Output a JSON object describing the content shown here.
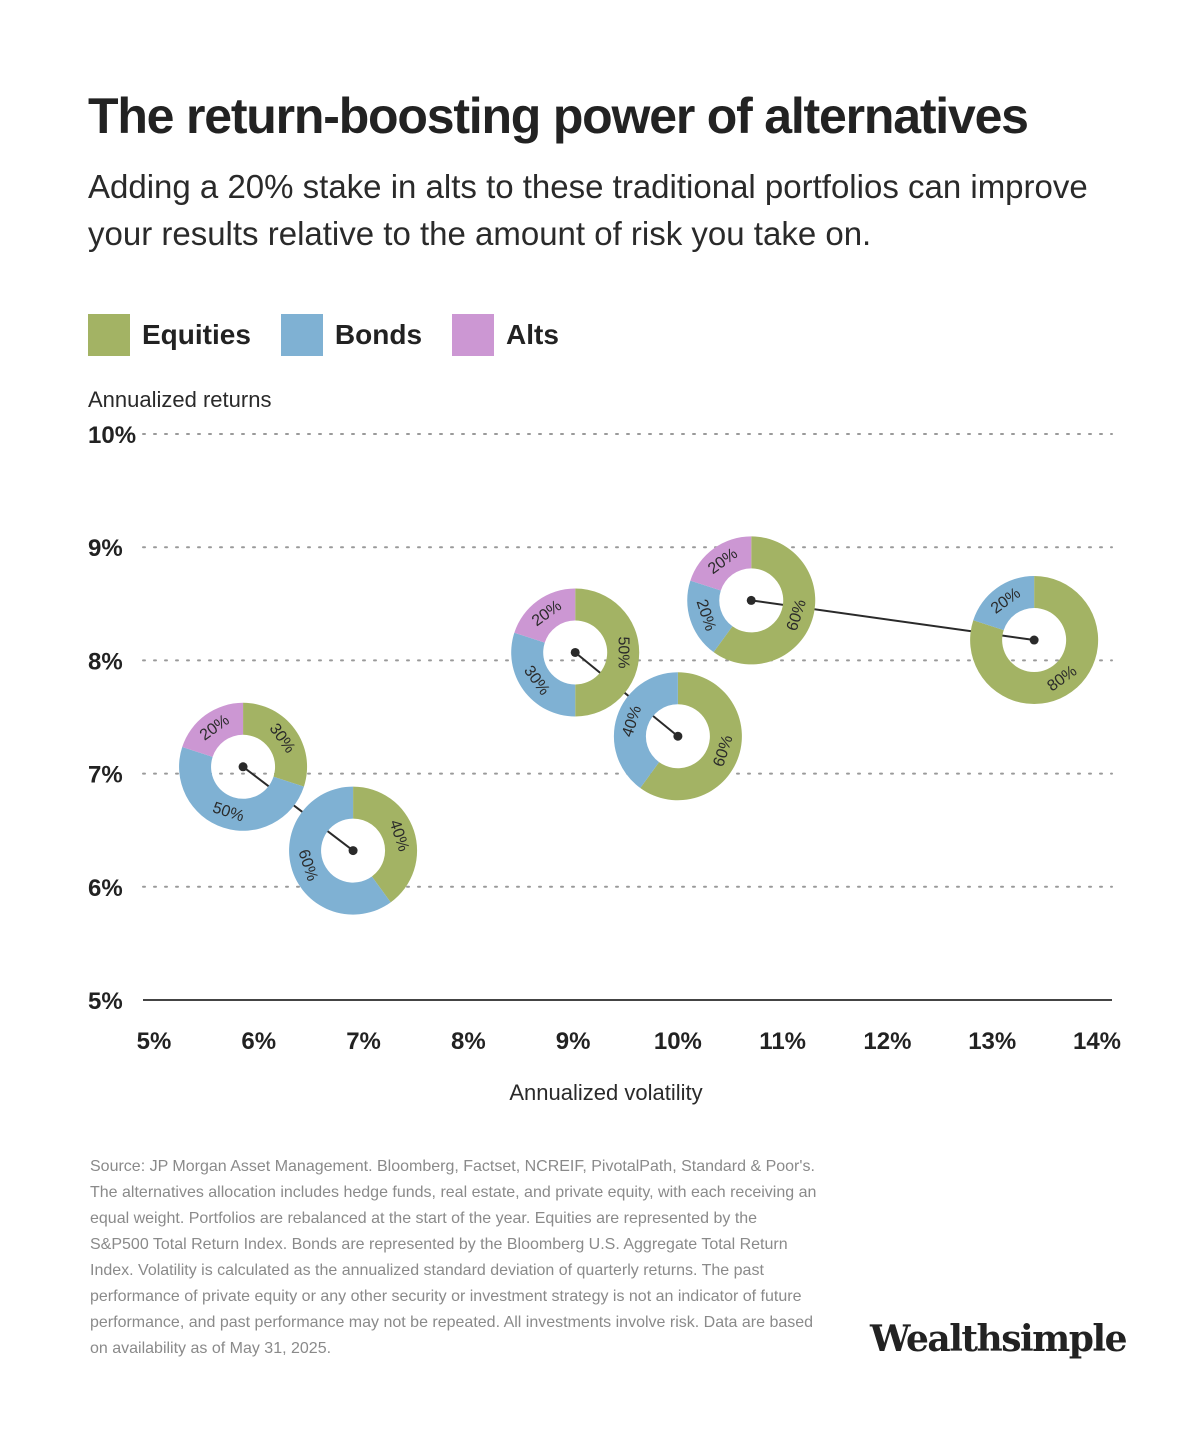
{
  "header": {
    "title": "The return-boosting power of alternatives",
    "subtitle": "Adding a 20% stake in alts to these traditional portfolios can improve your results relative to the amount of risk you take on."
  },
  "legend": [
    {
      "label": "Equities",
      "color": "#a3b364"
    },
    {
      "label": "Bonds",
      "color": "#7fb1d3"
    },
    {
      "label": "Alts",
      "color": "#cc97d3"
    }
  ],
  "chart_data": {
    "type": "scatter",
    "title": "The return-boosting power of alternatives",
    "xlabel": "Annualized volatility",
    "ylabel": "Annualized returns",
    "xlim": [
      5,
      14
    ],
    "ylim": [
      5,
      10
    ],
    "x_ticks": [
      "5%",
      "6%",
      "7%",
      "8%",
      "9%",
      "10%",
      "11%",
      "12%",
      "13%",
      "14%"
    ],
    "y_ticks": [
      "5%",
      "6%",
      "7%",
      "8%",
      "9%",
      "10%"
    ],
    "grid": "horizontal dotted",
    "legend_position": "top-left",
    "colors": {
      "Equities": "#a3b364",
      "Bonds": "#7fb1d3",
      "Alts": "#cc97d3"
    },
    "portfolios": [
      {
        "volatility": 5.85,
        "return": 7.06,
        "allocation": {
          "Equities": 30,
          "Bonds": 50,
          "Alts": 20
        }
      },
      {
        "volatility": 6.9,
        "return": 6.32,
        "allocation": {
          "Equities": 40,
          "Bonds": 60,
          "Alts": 0
        }
      },
      {
        "volatility": 9.02,
        "return": 8.07,
        "allocation": {
          "Equities": 50,
          "Bonds": 30,
          "Alts": 20
        }
      },
      {
        "volatility": 10.0,
        "return": 7.33,
        "allocation": {
          "Equities": 60,
          "Bonds": 40,
          "Alts": 0
        }
      },
      {
        "volatility": 10.7,
        "return": 8.53,
        "allocation": {
          "Equities": 60,
          "Bonds": 20,
          "Alts": 20
        }
      },
      {
        "volatility": 13.4,
        "return": 8.18,
        "allocation": {
          "Equities": 80,
          "Bonds": 20,
          "Alts": 0
        }
      }
    ],
    "connections": [
      [
        0,
        1
      ],
      [
        2,
        3
      ],
      [
        4,
        5
      ]
    ]
  },
  "footer": {
    "source": "Source: JP Morgan Asset Management. Bloomberg, Factset, NCREIF, PivotalPath, Standard & Poor's. The alternatives allocation includes hedge funds, real estate, and private equity, with each receiving an equal weight. Portfolios are rebalanced at the start of the year. Equities are represented by the S&P500 Total Return Index. Bonds are represented by the Bloomberg U.S. Aggregate Total Return Index. Volatility is calculated as the annualized standard deviation of quarterly returns. The past performance of private equity or any other security or investment strategy is not an indicator of future performance, and past performance may not be repeated. All investments involve risk. Data are based on availability as of May 31, 2025.",
    "brand": "Wealthsimple"
  }
}
